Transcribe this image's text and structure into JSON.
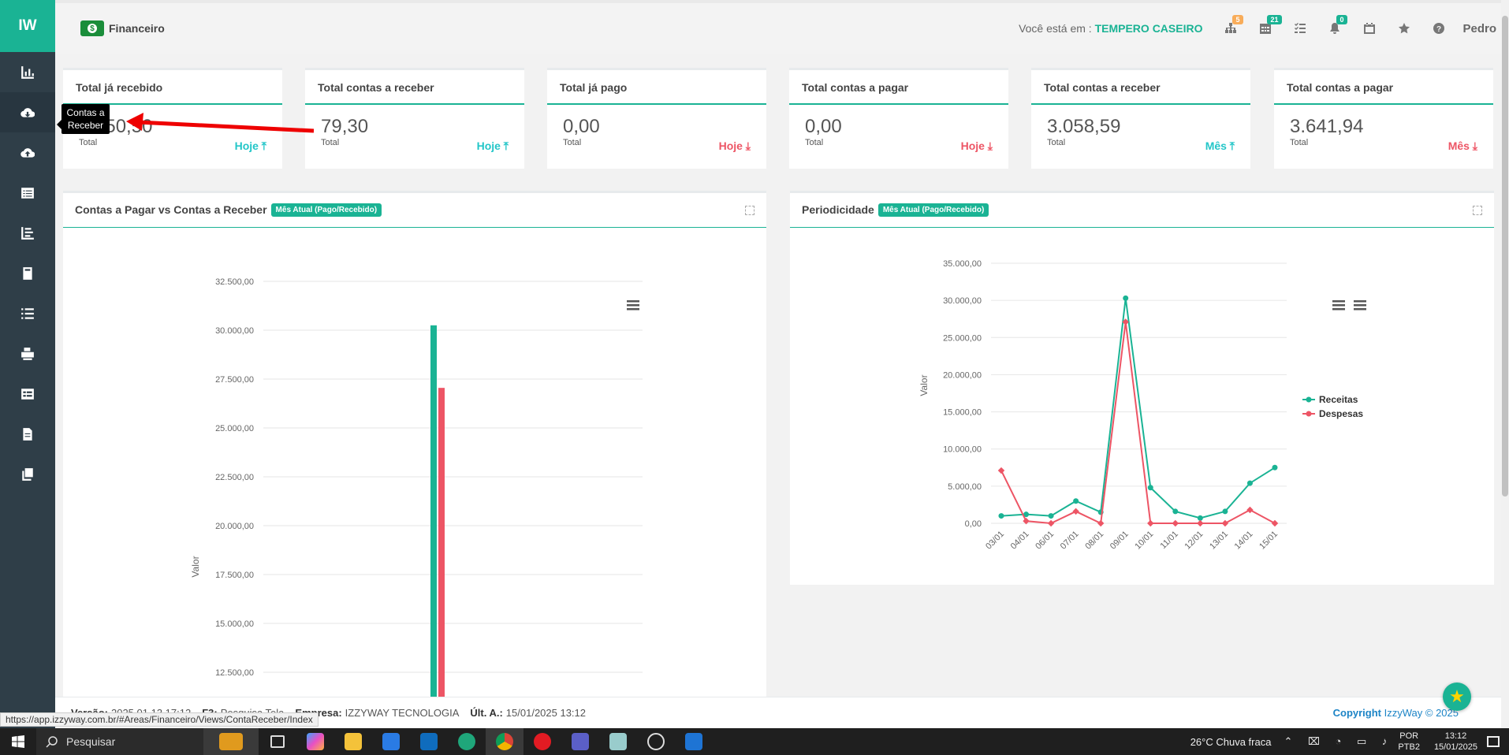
{
  "sidebar": {
    "logo": "IW",
    "tooltip": "Contas a Receber",
    "items": [
      "chart-bar-icon",
      "cloud-download-icon",
      "cloud-upload-icon",
      "list-alt-icon",
      "chart-line-icon",
      "book-icon",
      "list-icon",
      "printer-icon",
      "table-icon",
      "file-icon",
      "copy-icon"
    ]
  },
  "topbar": {
    "module": "Financeiro",
    "where_label": "Você está em :",
    "company": "TEMPERO CASEIRO",
    "badges": {
      "sitemap": "5",
      "calendar_table": "21",
      "bell": "0"
    },
    "user": "Pedro"
  },
  "cards": [
    {
      "title": "Total já recebido",
      "value": "1.550,50",
      "sub": "Total",
      "tag": "Hoje",
      "dir": "up"
    },
    {
      "title": "Total contas a receber",
      "value": "79,30",
      "sub": "Total",
      "tag": "Hoje",
      "dir": "up"
    },
    {
      "title": "Total já pago",
      "value": "0,00",
      "sub": "Total",
      "tag": "Hoje",
      "dir": "down"
    },
    {
      "title": "Total contas a pagar",
      "value": "0,00",
      "sub": "Total",
      "tag": "Hoje",
      "dir": "down"
    },
    {
      "title": "Total contas a receber",
      "value": "3.058,59",
      "sub": "Total",
      "tag": "Mês",
      "dir": "up"
    },
    {
      "title": "Total contas a pagar",
      "value": "3.641,94",
      "sub": "Total",
      "tag": "Mês",
      "dir": "down"
    }
  ],
  "panel_left": {
    "title": "Contas a Pagar vs Contas a Receber",
    "label": "Mês Atual (Pago/Recebido)"
  },
  "panel_right": {
    "title": "Periodicidade",
    "label": "Mês Atual (Pago/Recebido)"
  },
  "chart_data": [
    {
      "type": "bar",
      "ylabel": "Valor",
      "yticks": [
        "12.500,00",
        "15.000,00",
        "17.500,00",
        "20.000,00",
        "22.500,00",
        "25.000,00",
        "27.500,00",
        "30.000,00",
        "32.500,00"
      ],
      "ylim": [
        10000,
        32500
      ],
      "series": [
        {
          "values": [
            30250
          ],
          "color": "#1ab394"
        },
        {
          "values": [
            27050
          ],
          "color": "#ed5565"
        }
      ]
    },
    {
      "type": "line",
      "ylabel": "Valor",
      "categories": [
        "03/01",
        "04/01",
        "06/01",
        "07/01",
        "08/01",
        "09/01",
        "10/01",
        "11/01",
        "12/01",
        "13/01",
        "14/01",
        "15/01"
      ],
      "yticks": [
        "0,00",
        "5.000,00",
        "10.000,00",
        "15.000,00",
        "20.000,00",
        "25.000,00",
        "30.000,00",
        "35.000,00"
      ],
      "ylim": [
        0,
        35000
      ],
      "series": [
        {
          "name": "Receitas",
          "color": "#1ab394",
          "values": [
            1000,
            1200,
            1000,
            3000,
            1500,
            30300,
            4800,
            1600,
            700,
            1600,
            5400,
            7500
          ]
        },
        {
          "name": "Despesas",
          "color": "#ed5565",
          "values": [
            7100,
            300,
            0,
            1600,
            0,
            27100,
            0,
            0,
            0,
            0,
            1800,
            0
          ]
        }
      ],
      "legend": "right"
    }
  ],
  "footer": {
    "version_label": "Versão:",
    "version": "2025.01.13.17:12",
    "f3_label": "F3:",
    "f3": "Pesquisa Tela",
    "company_label": "Empresa:",
    "company": "IZZYWAY TECNOLOGIA",
    "last_label": "Últ. A.:",
    "last": "15/01/2025 13:12",
    "copyright_label": "Copyright",
    "copyright": "IzzyWay © 2025"
  },
  "status_url": "https://app.izzyway.com.br/#Areas/Financeiro/Views/ContaReceber/Index",
  "taskbar": {
    "search": "Pesquisar",
    "weather": "26°C  Chuva fraca",
    "lang1": "POR",
    "lang2": "PTB2",
    "time": "13:12",
    "date": "15/01/2025"
  }
}
